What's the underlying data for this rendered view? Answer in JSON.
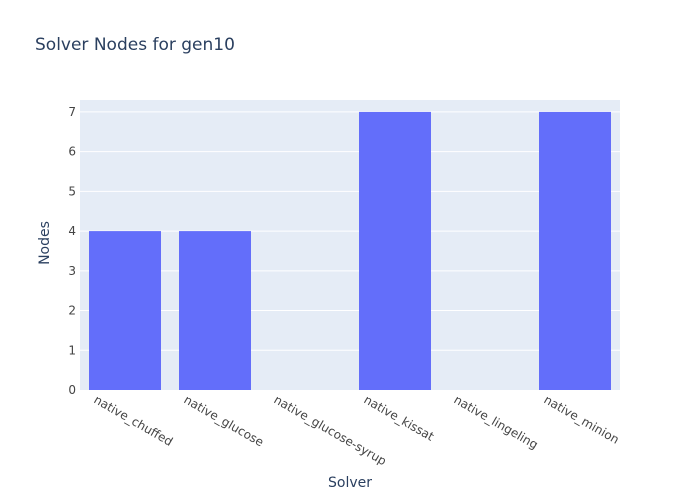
{
  "chart_data": {
    "type": "bar",
    "title": "Solver Nodes for gen10",
    "xlabel": "Solver",
    "ylabel": "Nodes",
    "categories": [
      "native_chuffed",
      "native_glucose",
      "native_glucose-syrup",
      "native_kissat",
      "native_lingeling",
      "native_minion"
    ],
    "values": [
      4,
      4,
      0,
      7,
      0,
      7
    ],
    "ylim": [
      0,
      7.3
    ],
    "yticks": [
      0,
      1,
      2,
      3,
      4,
      5,
      6,
      7
    ],
    "grid": true,
    "legend": "none",
    "colors": {
      "bar": "#636efa",
      "plot_bg": "#e5ecf6",
      "grid": "#ffffff",
      "text": "#2a3f5f",
      "tick_text": "#444444"
    }
  }
}
